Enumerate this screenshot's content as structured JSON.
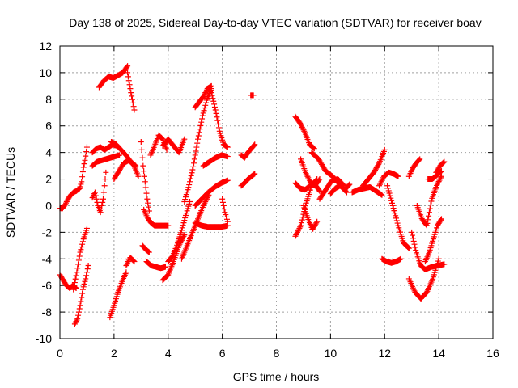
{
  "chart_data": {
    "type": "scatter",
    "title": "Day 138 of 2025, Sidereal Day-to-day VTEC variation (SDTVAR) for receiver boav",
    "xlabel": "GPS time / hours",
    "ylabel": "SDTVAR / TECUs",
    "xlim": [
      0,
      16
    ],
    "ylim": [
      -10,
      12
    ],
    "xticks": [
      0,
      2,
      4,
      6,
      8,
      10,
      12,
      14,
      16
    ],
    "yticks": [
      -10,
      -8,
      -6,
      -4,
      -2,
      0,
      2,
      4,
      6,
      8,
      10,
      12
    ],
    "grid": true,
    "marker": "plus",
    "color": "#ff0000",
    "series": [
      {
        "name": "SDTVAR",
        "segments": [
          {
            "start": 0.0,
            "end": 0.6,
            "values": [
              -0.2,
              -0.2,
              0.1,
              0.5,
              0.8,
              1.0,
              1.1
            ]
          },
          {
            "start": 0.6,
            "end": 1.0,
            "values": [
              1.1,
              1.2,
              1.3,
              1.8,
              2.8,
              3.5,
              4.4
            ]
          },
          {
            "start": 0.0,
            "end": 0.6,
            "values": [
              -5.2,
              -5.6,
              -6.0,
              -6.2,
              -6.0,
              -6.2
            ]
          },
          {
            "start": 0.5,
            "end": 1.0,
            "values": [
              -6.3,
              -5.0,
              -3.5,
              -2.5,
              -1.7
            ]
          },
          {
            "start": 0.55,
            "end": 1.05,
            "values": [
              -8.9,
              -8.5,
              -7.5,
              -6.3,
              -5.5,
              -4.5
            ]
          },
          {
            "start": 1.2,
            "end": 1.7,
            "values": [
              0.6,
              1.0,
              0.0,
              -0.5,
              0.5,
              2.5
            ]
          },
          {
            "start": 1.2,
            "end": 2.2,
            "values": [
              3.0,
              3.3,
              3.4,
              3.5,
              3.6,
              3.7,
              3.8
            ]
          },
          {
            "start": 1.2,
            "end": 2.1,
            "values": [
              4.0,
              4.3,
              4.4,
              4.2,
              4.4,
              4.6,
              4.5
            ]
          },
          {
            "start": 1.45,
            "end": 2.5,
            "values": [
              8.9,
              9.4,
              9.7,
              9.6,
              9.8,
              10.0,
              10.5
            ]
          },
          {
            "start": 2.5,
            "end": 2.75,
            "values": [
              10.0,
              8.5,
              7.2
            ]
          },
          {
            "start": 1.9,
            "end": 2.8,
            "values": [
              4.8,
              4.6,
              4.2,
              3.8,
              3.3,
              3.0
            ]
          },
          {
            "start": 2.0,
            "end": 2.9,
            "values": [
              2.0,
              2.6,
              3.2,
              3.4,
              3.1,
              2.2
            ]
          },
          {
            "start": 1.85,
            "end": 2.45,
            "values": [
              -8.4,
              -7.5,
              -6.5,
              -5.7,
              -5.0
            ]
          },
          {
            "start": 2.45,
            "end": 2.75,
            "values": [
              -4.5,
              -3.9,
              -4.2
            ]
          },
          {
            "start": 3.0,
            "end": 3.3,
            "values": [
              4.8,
              3.0,
              1.8,
              0.5,
              -0.4
            ]
          },
          {
            "start": 3.05,
            "end": 3.3,
            "values": [
              -3.0,
              -3.3,
              -3.5
            ]
          },
          {
            "start": 3.1,
            "end": 3.5,
            "values": [
              -0.3,
              -0.9,
              -1.3,
              -1.5
            ]
          },
          {
            "start": 3.5,
            "end": 4.0,
            "values": [
              -1.5,
              -1.5,
              -1.5,
              -1.5
            ]
          },
          {
            "start": 3.2,
            "end": 3.9,
            "values": [
              -4.2,
              -4.5,
              -4.6,
              -4.7,
              -4.6
            ]
          },
          {
            "start": 3.35,
            "end": 3.95,
            "values": [
              3.8,
              4.5,
              5.3,
              5.0,
              4.2
            ]
          },
          {
            "start": 3.8,
            "end": 4.6,
            "values": [
              -5.6,
              -5.2,
              -4.2,
              -3.0,
              -2.2
            ]
          },
          {
            "start": 3.8,
            "end": 4.6,
            "values": [
              4.5,
              5.0,
              4.5,
              4.0,
              5.0
            ]
          },
          {
            "start": 4.0,
            "end": 4.8,
            "values": [
              -4.2,
              -3.8,
              -3.0,
              -2.0,
              -0.8,
              0.3
            ]
          },
          {
            "start": 4.6,
            "end": 5.6,
            "values": [
              0.3,
              1.5,
              3.0,
              5.0,
              6.7,
              8.0,
              8.8
            ]
          },
          {
            "start": 5.0,
            "end": 5.6,
            "values": [
              7.4,
              7.8,
              8.2,
              8.8,
              9.0
            ]
          },
          {
            "start": 5.6,
            "end": 6.2,
            "values": [
              8.5,
              7.2,
              5.6,
              4.6,
              4.4
            ]
          },
          {
            "start": 4.5,
            "end": 5.5,
            "values": [
              -4.0,
              -3.0,
              -2.0,
              -1.0,
              0.0,
              0.8
            ]
          },
          {
            "start": 5.0,
            "end": 6.2,
            "values": [
              -1.3,
              -1.5,
              -1.6,
              -1.6,
              -1.6,
              -1.5
            ]
          },
          {
            "start": 5.0,
            "end": 6.2,
            "values": [
              0.0,
              0.5,
              1.0,
              1.4,
              1.7,
              1.9
            ]
          },
          {
            "start": 5.3,
            "end": 6.2,
            "values": [
              3.0,
              3.3,
              3.6,
              3.8,
              3.7
            ]
          },
          {
            "start": 6.0,
            "end": 6.2,
            "values": [
              0.5,
              -0.5,
              -1.2
            ]
          },
          {
            "start": 6.7,
            "end": 7.2,
            "values": [
              3.8,
              3.6,
              4.0,
              4.3,
              4.6
            ]
          },
          {
            "start": 6.7,
            "end": 7.2,
            "values": [
              1.5,
              1.7,
              2.0,
              2.2,
              2.4
            ]
          },
          {
            "start": 7.05,
            "end": 7.15,
            "values": [
              8.3,
              8.3
            ]
          },
          {
            "start": 8.7,
            "end": 9.4,
            "values": [
              6.7,
              6.2,
              5.5,
              4.6,
              4.3
            ]
          },
          {
            "start": 8.7,
            "end": 9.5,
            "values": [
              -2.3,
              -1.5,
              0.2,
              1.5,
              2.0
            ]
          },
          {
            "start": 8.7,
            "end": 9.6,
            "values": [
              1.7,
              1.3,
              1.2,
              1.5,
              1.6,
              1.1
            ]
          },
          {
            "start": 8.9,
            "end": 9.6,
            "values": [
              3.5,
              2.5,
              1.8,
              1.5,
              2.0
            ]
          },
          {
            "start": 9.0,
            "end": 9.5,
            "values": [
              0.0,
              -1.0,
              -1.8,
              -1.2
            ]
          },
          {
            "start": 9.3,
            "end": 10.6,
            "values": [
              4.0,
              3.5,
              2.6,
              2.2,
              1.6,
              1.0
            ]
          },
          {
            "start": 9.6,
            "end": 10.5,
            "values": [
              0.5,
              1.2,
              1.9,
              2.0,
              1.5
            ]
          },
          {
            "start": 10.0,
            "end": 10.7,
            "values": [
              0.9,
              1.3,
              1.5,
              1.2,
              1.6
            ]
          },
          {
            "start": 10.8,
            "end": 11.9,
            "values": [
              1.0,
              1.2,
              1.3,
              1.4,
              1.1,
              0.8
            ]
          },
          {
            "start": 11.2,
            "end": 12.0,
            "values": [
              1.5,
              2.0,
              2.5,
              3.2,
              4.2
            ]
          },
          {
            "start": 11.8,
            "end": 12.5,
            "values": [
              1.5,
              2.2,
              2.5,
              2.4,
              2.2
            ]
          },
          {
            "start": 12.1,
            "end": 12.9,
            "values": [
              1.5,
              0.0,
              -1.5,
              -2.8,
              -3.2
            ]
          },
          {
            "start": 11.9,
            "end": 12.6,
            "values": [
              -4.0,
              -4.2,
              -4.3,
              -4.2,
              -4.0
            ]
          },
          {
            "start": 12.9,
            "end": 13.3,
            "values": [
              2.2,
              2.8,
              3.2,
              3.5
            ]
          },
          {
            "start": 13.0,
            "end": 13.5,
            "values": [
              -2.0,
              -3.5,
              -4.5,
              -4.8
            ]
          },
          {
            "start": 12.9,
            "end": 14.0,
            "values": [
              -5.5,
              -6.5,
              -7.0,
              -6.5,
              -5.5,
              -4.0
            ]
          },
          {
            "start": 13.2,
            "end": 14.1,
            "values": [
              0.0,
              -1.0,
              -1.5,
              0.5,
              1.5,
              2.2
            ]
          },
          {
            "start": 13.5,
            "end": 14.1,
            "values": [
              -4.2,
              -3.5,
              -2.5,
              -1.5,
              -1.0
            ]
          },
          {
            "start": 13.5,
            "end": 14.2,
            "values": [
              -4.8,
              -4.6,
              -4.5,
              -4.4
            ]
          },
          {
            "start": 13.6,
            "end": 14.1,
            "values": [
              2.0,
              2.0,
              2.3,
              2.6
            ]
          },
          {
            "start": 13.9,
            "end": 14.2,
            "values": [
              2.5,
              3.0,
              3.3
            ]
          }
        ]
      }
    ]
  }
}
